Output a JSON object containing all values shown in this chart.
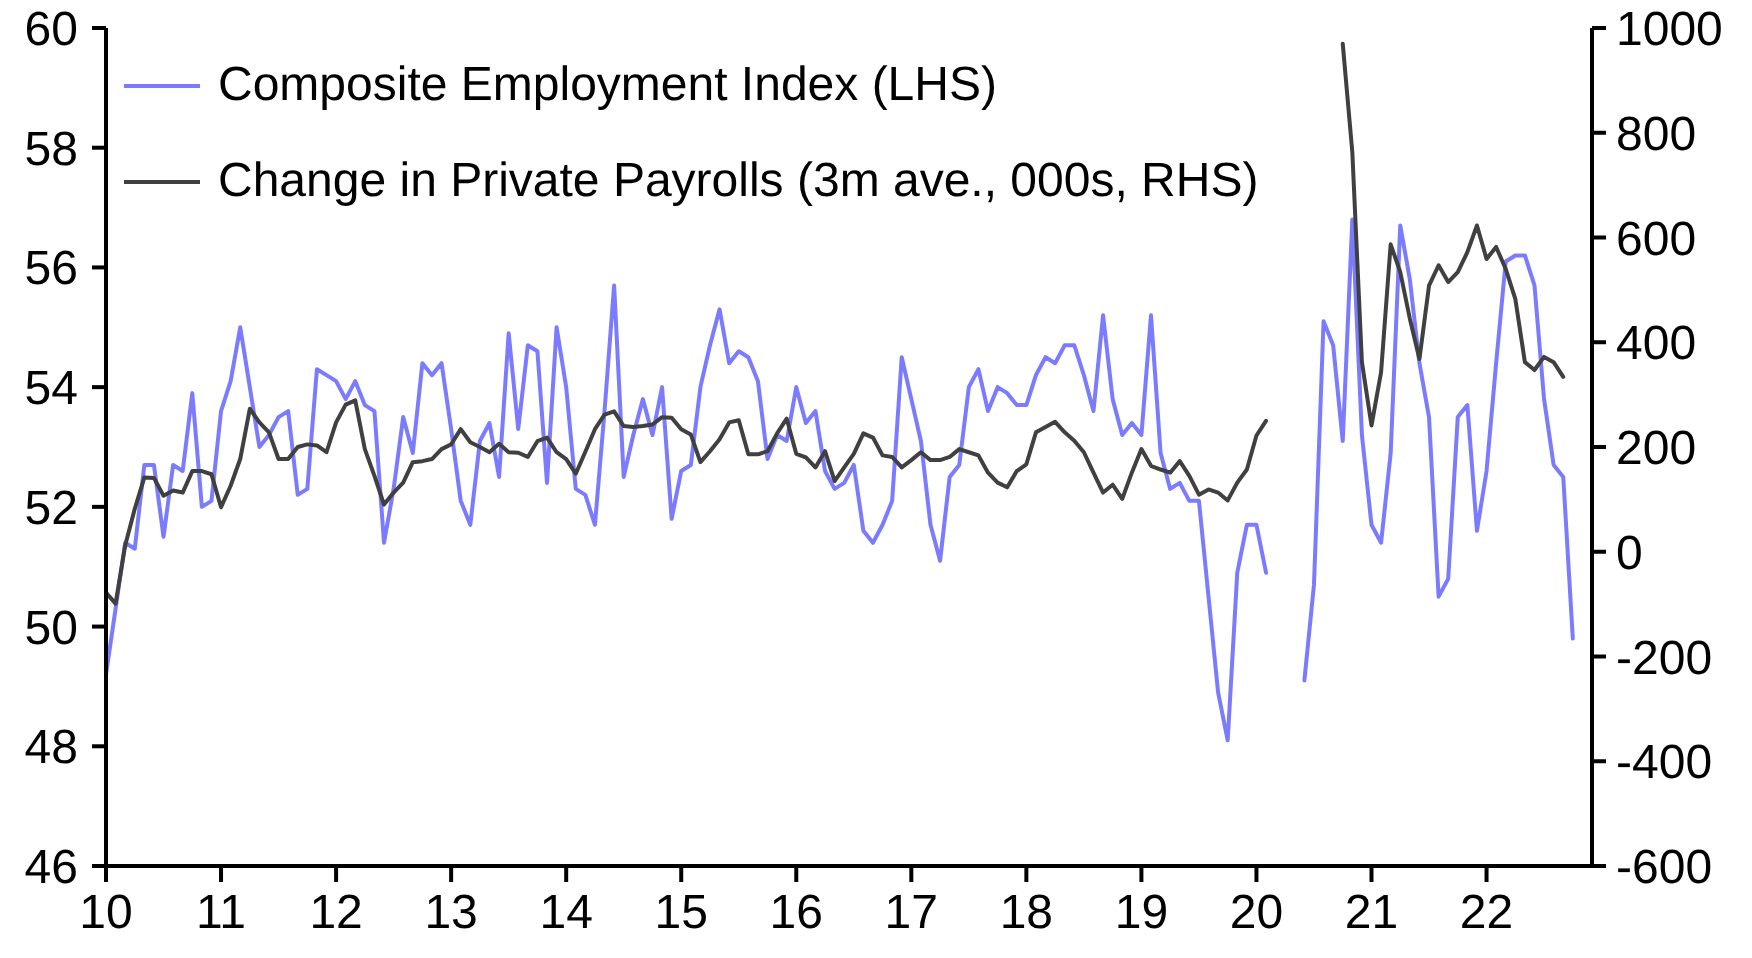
{
  "chart_data": {
    "type": "line",
    "x": [
      "2010-01",
      "2010-02",
      "2010-03",
      "2010-04",
      "2010-05",
      "2010-06",
      "2010-07",
      "2010-08",
      "2010-09",
      "2010-10",
      "2010-11",
      "2010-12",
      "2011-01",
      "2011-02",
      "2011-03",
      "2011-04",
      "2011-05",
      "2011-06",
      "2011-07",
      "2011-08",
      "2011-09",
      "2011-10",
      "2011-11",
      "2011-12",
      "2012-01",
      "2012-02",
      "2012-03",
      "2012-04",
      "2012-05",
      "2012-06",
      "2012-07",
      "2012-08",
      "2012-09",
      "2012-10",
      "2012-11",
      "2012-12",
      "2013-01",
      "2013-02",
      "2013-03",
      "2013-04",
      "2013-05",
      "2013-06",
      "2013-07",
      "2013-08",
      "2013-09",
      "2013-10",
      "2013-11",
      "2013-12",
      "2014-01",
      "2014-02",
      "2014-03",
      "2014-04",
      "2014-05",
      "2014-06",
      "2014-07",
      "2014-08",
      "2014-09",
      "2014-10",
      "2014-11",
      "2014-12",
      "2015-01",
      "2015-02",
      "2015-03",
      "2015-04",
      "2015-05",
      "2015-06",
      "2015-07",
      "2015-08",
      "2015-09",
      "2015-10",
      "2015-11",
      "2015-12",
      "2016-01",
      "2016-02",
      "2016-03",
      "2016-04",
      "2016-05",
      "2016-06",
      "2016-07",
      "2016-08",
      "2016-09",
      "2016-10",
      "2016-11",
      "2016-12",
      "2017-01",
      "2017-02",
      "2017-03",
      "2017-04",
      "2017-05",
      "2017-06",
      "2017-07",
      "2017-08",
      "2017-09",
      "2017-10",
      "2017-11",
      "2017-12",
      "2018-01",
      "2018-02",
      "2018-03",
      "2018-04",
      "2018-05",
      "2018-06",
      "2018-07",
      "2018-08",
      "2018-09",
      "2018-10",
      "2018-11",
      "2018-12",
      "2019-01",
      "2019-02",
      "2019-03",
      "2019-04",
      "2019-05",
      "2019-06",
      "2019-07",
      "2019-08",
      "2019-09",
      "2019-10",
      "2019-11",
      "2019-12",
      "2020-01",
      "2020-02",
      "2020-03",
      "2020-04",
      "2020-05",
      "2020-06",
      "2020-07",
      "2020-08",
      "2020-09",
      "2020-10",
      "2020-11",
      "2020-12",
      "2021-01",
      "2021-02",
      "2021-03",
      "2021-04",
      "2021-05",
      "2021-06",
      "2021-07",
      "2021-08",
      "2021-09",
      "2021-10",
      "2021-11",
      "2021-12",
      "2022-01",
      "2022-02",
      "2022-03",
      "2022-04",
      "2022-05",
      "2022-06",
      "2022-07",
      "2022-08",
      "2022-09",
      "2022-10"
    ],
    "series": [
      {
        "name": "Composite Employment Index (LHS)",
        "color": "#7b7bff",
        "axis": "y",
        "values": [
          49.2,
          50.3,
          51.4,
          51.3,
          52.7,
          52.7,
          51.5,
          52.7,
          52.6,
          53.9,
          52.0,
          52.1,
          53.6,
          54.1,
          55.0,
          54.0,
          53.0,
          53.2,
          53.5,
          53.6,
          52.2,
          52.3,
          54.3,
          54.2,
          54.1,
          53.8,
          54.1,
          53.7,
          53.6,
          51.4,
          52.3,
          53.5,
          52.9,
          54.4,
          54.2,
          54.4,
          53.3,
          52.1,
          51.7,
          53.1,
          53.4,
          52.5,
          54.9,
          53.3,
          54.7,
          54.6,
          52.4,
          55.0,
          54.0,
          52.3,
          52.2,
          51.7,
          53.6,
          55.7,
          52.5,
          53.2,
          53.8,
          53.2,
          54.0,
          51.8,
          52.6,
          52.7,
          54.0,
          54.7,
          55.3,
          54.4,
          54.6,
          54.5,
          54.1,
          52.8,
          53.2,
          53.1,
          54.0,
          53.4,
          53.6,
          52.6,
          52.3,
          52.4,
          52.7,
          51.6,
          51.4,
          51.7,
          52.1,
          54.5,
          53.8,
          53.1,
          51.7,
          51.1,
          52.5,
          52.7,
          54.0,
          54.3,
          53.6,
          54.0,
          53.9,
          53.7,
          53.7,
          54.2,
          54.5,
          54.4,
          54.7,
          54.7,
          54.2,
          53.6,
          55.2,
          53.8,
          53.2,
          53.4,
          53.2,
          55.2,
          52.9,
          52.3,
          52.4,
          52.1,
          52.1,
          50.5,
          48.9,
          48.1,
          50.9,
          51.7,
          51.7,
          50.9,
          null,
          null,
          null,
          49.1,
          50.7,
          55.1,
          54.7,
          53.1,
          56.8,
          53.2,
          51.7,
          51.4,
          52.9,
          56.7,
          55.8,
          54.4,
          53.5,
          50.5,
          50.8,
          53.5,
          53.7,
          51.6,
          52.6,
          54.4,
          56.1,
          56.2,
          56.2,
          55.7,
          53.8,
          52.7,
          52.5,
          49.8
        ]
      },
      {
        "name": "Change in Private Payrolls (3m ave., 000s, RHS)",
        "color": "#404040",
        "axis": "y2",
        "values": [
          -78,
          -99,
          12,
          82,
          142,
          141,
          107,
          117,
          113,
          154,
          154,
          148,
          85,
          126,
          177,
          273,
          247,
          228,
          177,
          177,
          200,
          205,
          203,
          190,
          247,
          281,
          289,
          196,
          145,
          90,
          113,
          132,
          171,
          173,
          177,
          196,
          205,
          234,
          209,
          200,
          190,
          206,
          190,
          189,
          181,
          211,
          218,
          190,
          177,
          149,
          191,
          234,
          262,
          268,
          240,
          238,
          240,
          243,
          257,
          256,
          234,
          224,
          171,
          192,
          215,
          247,
          251,
          186,
          186,
          192,
          226,
          254,
          187,
          180,
          161,
          192,
          135,
          161,
          187,
          226,
          218,
          184,
          181,
          161,
          175,
          190,
          175,
          175,
          181,
          196,
          190,
          184,
          151,
          132,
          123,
          154,
          167,
          228,
          238,
          248,
          228,
          212,
          190,
          151,
          113,
          128,
          101,
          151,
          196,
          164,
          157,
          151,
          173,
          145,
          109,
          119,
          113,
          98,
          132,
          157,
          222,
          250,
          null,
          null,
          null,
          null,
          null,
          null,
          null,
          970,
          763,
          362,
          241,
          343,
          587,
          534,
          445,
          368,
          508,
          547,
          515,
          534,
          572,
          623,
          559,
          582,
          540,
          483,
          362,
          347,
          372,
          362,
          334,
          null
        ]
      }
    ],
    "xlim": [
      "2010-01",
      "2022-12"
    ],
    "xticks": [
      {
        "value": "2010-01",
        "label": "10"
      },
      {
        "value": "2011-01",
        "label": "11"
      },
      {
        "value": "2012-01",
        "label": "12"
      },
      {
        "value": "2013-01",
        "label": "13"
      },
      {
        "value": "2014-01",
        "label": "14"
      },
      {
        "value": "2015-01",
        "label": "15"
      },
      {
        "value": "2016-01",
        "label": "16"
      },
      {
        "value": "2017-01",
        "label": "17"
      },
      {
        "value": "2018-01",
        "label": "18"
      },
      {
        "value": "2019-01",
        "label": "19"
      },
      {
        "value": "2020-01",
        "label": "20"
      },
      {
        "value": "2021-01",
        "label": "21"
      },
      {
        "value": "2022-01",
        "label": "22"
      }
    ],
    "ylim": [
      46,
      60
    ],
    "yticks": [
      46,
      48,
      50,
      52,
      54,
      56,
      58,
      60
    ],
    "y2lim": [
      -600,
      1000
    ],
    "y2ticks": [
      -600,
      -400,
      -200,
      0,
      200,
      400,
      600,
      800,
      1000
    ],
    "legend": "top left"
  }
}
